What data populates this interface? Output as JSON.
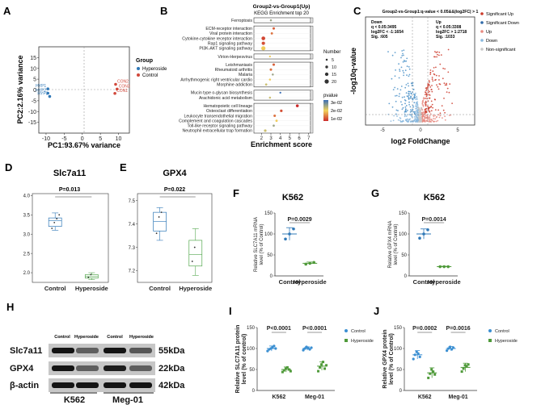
{
  "panels": {
    "A": {
      "letter": "A"
    },
    "B": {
      "letter": "B"
    },
    "C": {
      "letter": "C"
    },
    "D": {
      "letter": "D"
    },
    "E": {
      "letter": "E"
    },
    "F": {
      "letter": "F"
    },
    "G": {
      "letter": "G"
    },
    "H": {
      "letter": "H"
    },
    "I": {
      "letter": "I"
    },
    "J": {
      "letter": "J"
    }
  },
  "colors": {
    "control": "#2f78b7",
    "hyperoside": "#d1483b",
    "F_control": "#2f78b7",
    "F_hyperoside": "#4f9a3a",
    "I_control": "#3b8fd2",
    "I_hyperoside": "#4f9a3a",
    "D_hyper": "#55a84f",
    "volcano_up": "#cc3a2a",
    "volcano_down": "#4a90c8",
    "volcano_ns": "#c8c8c8"
  },
  "chart_data": [
    {
      "id": "A",
      "type": "scatter",
      "title": "",
      "xlabel": "PC1:93.67% variance",
      "ylabel": "PC2:2.16% variance",
      "xlim": [
        -12,
        13
      ],
      "ylim": [
        -20,
        20
      ],
      "xticks": [
        "-10",
        "-5",
        "0",
        "5",
        "10"
      ],
      "yticks": [
        "-15",
        "-10",
        "-5",
        "0",
        "5",
        "10",
        "15"
      ],
      "legend_title": "Group",
      "legend": [
        "Hyperoside",
        "Control"
      ],
      "series": [
        {
          "name": "Hyperoside",
          "points": [
            [
              -9.5,
              0.5,
              "HYP1"
            ],
            [
              -9.5,
              -1.5,
              "HYP2"
            ],
            [
              -9.0,
              -3.0,
              "HYP3"
            ]
          ]
        },
        {
          "name": "Control",
          "points": [
            [
              9.2,
              2.6,
              "CON2"
            ],
            [
              9.6,
              0.4,
              "CON3"
            ],
            [
              9.0,
              -1.6,
              "CON1"
            ]
          ]
        }
      ]
    },
    {
      "id": "B",
      "type": "scatter",
      "title_line1": "Group2-vs-Group1(Up)",
      "title_line2": "KEGG Enrichment top 20",
      "xlabel": "Enrichment score",
      "xlim": [
        1.2,
        7.2
      ],
      "xticks": [
        "2",
        "3",
        "4",
        "5",
        "6",
        "7"
      ],
      "size_legend_title": "Number",
      "size_legend": [
        "5",
        "10",
        "15",
        "20"
      ],
      "color_legend_title": "pvalue",
      "color_legend": [
        "3e-02",
        "2e-02",
        "1e-02"
      ],
      "terms": [
        {
          "name": "Ferroptosis",
          "score": 3.0,
          "number": 5,
          "pvalue": 0.03,
          "group": "a"
        },
        {
          "name": "ECM-receptor interaction",
          "score": 3.3,
          "number": 8,
          "pvalue": 0.008,
          "group": "b"
        },
        {
          "name": "Viral protein interaction",
          "score": 3.1,
          "number": 7,
          "pvalue": 0.01,
          "group": "b"
        },
        {
          "name": "Cytokine-cytokine receptor interaction",
          "score": 2.2,
          "number": 17,
          "pvalue": 0.005,
          "group": "b"
        },
        {
          "name": "Rap1 signaling pathway",
          "score": 2.2,
          "number": 14,
          "pvalue": 0.006,
          "group": "b"
        },
        {
          "name": "PI3K-AKT signaling pathway",
          "score": 2.2,
          "number": 20,
          "pvalue": 0.02,
          "group": "b"
        },
        {
          "name": "Virion-Herpesvirus",
          "score": 2.9,
          "number": 4,
          "pvalue": 0.02,
          "group": "c"
        },
        {
          "name": "Leishmaniasis",
          "score": 3.3,
          "number": 8,
          "pvalue": 0.008,
          "group": "d"
        },
        {
          "name": "Rheumatoid arthritis",
          "score": 3.0,
          "number": 8,
          "pvalue": 0.01,
          "group": "d"
        },
        {
          "name": "Malaria",
          "score": 3.2,
          "number": 5,
          "pvalue": 0.03,
          "group": "d"
        },
        {
          "name": "Arrhythmogenic right ventricular cardio",
          "score": 2.9,
          "number": 5,
          "pvalue": 0.02,
          "group": "d"
        },
        {
          "name": "Morphine addiction",
          "score": 2.5,
          "number": 6,
          "pvalue": 0.025,
          "group": "d"
        },
        {
          "name": "Mucin type o-glycan biosynthesis",
          "score": 4.0,
          "number": 4,
          "pvalue": 0.04,
          "group": "e"
        },
        {
          "name": "Arachidonic acid metabolism",
          "score": 2.9,
          "number": 5,
          "pvalue": 0.025,
          "group": "e"
        },
        {
          "name": "Hematopoietic cell lineage",
          "score": 5.8,
          "number": 11,
          "pvalue": 0.002,
          "group": "f"
        },
        {
          "name": "Osteoclast differentiation",
          "score": 4.1,
          "number": 9,
          "pvalue": 0.006,
          "group": "f"
        },
        {
          "name": "Leukocyte transendothelial migration",
          "score": 3.4,
          "number": 8,
          "pvalue": 0.01,
          "group": "f"
        },
        {
          "name": "Complement and coagulation cascades",
          "score": 3.6,
          "number": 7,
          "pvalue": 0.02,
          "group": "f"
        },
        {
          "name": "Toll-like receptor signaling pathway",
          "score": 3.3,
          "number": 6,
          "pvalue": 0.03,
          "group": "f"
        },
        {
          "name": "Neutrophil extracellular trap formation",
          "score": 2.4,
          "number": 9,
          "pvalue": 0.025,
          "group": "f"
        }
      ]
    },
    {
      "id": "C",
      "type": "scatter",
      "title": "Group2-vs-Group1:q-value < 0.05&&|log2FC| > 1",
      "xlabel": "log2 FoldChange",
      "ylabel": "-log10q-value",
      "xticks": [
        "-5",
        "0",
        "5"
      ],
      "down_text": [
        "Down",
        "q < 0.05:3495",
        "log2FC < -1:1654",
        "Sig. :605"
      ],
      "up_text": [
        "Up",
        "q < 0.05:3308",
        "log2FC > 1:2718",
        "Sig. :1033"
      ],
      "legend": [
        "Significant Up",
        "Significant Down",
        "Up",
        "Down",
        "Non-significant"
      ]
    },
    {
      "id": "D",
      "type": "box",
      "title": "Slc7a11",
      "pvalue": "P=0.013",
      "categories": [
        "Control",
        "Hyperoside"
      ],
      "ylim": [
        1.75,
        4.05
      ],
      "yticks": [
        "2.0",
        "2.5",
        "3.0",
        "3.5",
        "4.0"
      ],
      "boxes": [
        {
          "name": "Control",
          "min": 3.1,
          "q1": 3.2,
          "median": 3.35,
          "q3": 3.42,
          "max": 3.55,
          "points": [
            3.15,
            3.3,
            3.4,
            3.5
          ]
        },
        {
          "name": "Hyperoside",
          "min": 1.82,
          "q1": 1.86,
          "median": 1.9,
          "q3": 1.95,
          "max": 2.0,
          "points": [
            1.88,
            1.95
          ]
        }
      ]
    },
    {
      "id": "E",
      "type": "box",
      "title": "GPX4",
      "pvalue": "P=0.022",
      "categories": [
        "Control",
        "Hyperoside"
      ],
      "ylim": [
        7.15,
        7.53
      ],
      "yticks": [
        "7.2",
        "7.3",
        "7.4",
        "7.5"
      ],
      "boxes": [
        {
          "name": "Control",
          "min": 7.33,
          "q1": 7.37,
          "median": 7.41,
          "q3": 7.45,
          "max": 7.47,
          "points": [
            7.36,
            7.43,
            7.45
          ]
        },
        {
          "name": "Hyperoside",
          "min": 7.18,
          "q1": 7.22,
          "median": 7.27,
          "q3": 7.33,
          "max": 7.38,
          "points": [
            7.24,
            7.3
          ]
        }
      ]
    },
    {
      "id": "F",
      "type": "bar",
      "title": "K562",
      "pvalue": "P=0.0029",
      "ylabel": "Relative SLC7A11 mRNA level (% of Control)",
      "categories": [
        "Control",
        "Hyperoside"
      ],
      "ylim": [
        0,
        150
      ],
      "yticks": [
        "0",
        "50",
        "100",
        "150"
      ],
      "values": [
        100,
        30
      ],
      "errors": [
        15,
        3
      ],
      "points": [
        [
          88,
          100,
          112
        ],
        [
          28,
          30,
          32
        ]
      ]
    },
    {
      "id": "G",
      "type": "bar",
      "title": "K562",
      "pvalue": "P=0.0014",
      "ylabel": "Relative GPX4 mRNA level (% of Control)",
      "categories": [
        "Control",
        "Hyperoside"
      ],
      "ylim": [
        0,
        150
      ],
      "yticks": [
        "0",
        "50",
        "100",
        "150"
      ],
      "values": [
        100,
        22
      ],
      "errors": [
        12,
        1
      ],
      "points": [
        [
          90,
          100,
          110
        ],
        [
          22,
          22,
          22
        ]
      ]
    },
    {
      "id": "I",
      "type": "bar",
      "ylabel": "Relative SLC7A11 protein level (% of control)",
      "categories": [
        "K562",
        "Meg-01"
      ],
      "legend": [
        "Control",
        "Hyperoside"
      ],
      "ylim": [
        0,
        150
      ],
      "yticks": [
        "0",
        "50",
        "100",
        "150"
      ],
      "pvalues": [
        "P<0.0001",
        "P<0.0001"
      ],
      "series": [
        {
          "name": "Control",
          "values": [
            100,
            100
          ],
          "errors": [
            6,
            4
          ],
          "points": [
            [
              94,
              98,
              100,
              103,
              106,
              100
            ],
            [
              96,
              100,
              104,
              101,
              98,
              102
            ]
          ]
        },
        {
          "name": "Hyperoside",
          "values": [
            50,
            58
          ],
          "errors": [
            6,
            10
          ],
          "points": [
            [
              44,
              48,
              52,
              55,
              50,
              46
            ],
            [
              46,
              55,
              62,
              68,
              52,
              60
            ]
          ]
        }
      ]
    },
    {
      "id": "J",
      "type": "bar",
      "ylabel": "Relative GPX4 protein level (% of Control)",
      "categories": [
        "K562",
        "Meg-01"
      ],
      "legend": [
        "Control",
        "Hyperoside"
      ],
      "ylim": [
        0,
        150
      ],
      "yticks": [
        "0",
        "50",
        "100",
        "150"
      ],
      "pvalues": [
        "P=0.0002",
        "P=0.0016"
      ],
      "series": [
        {
          "name": "Control",
          "values": [
            85,
            100
          ],
          "errors": [
            10,
            5
          ],
          "points": [
            [
              75,
              85,
              92,
              88,
              80
            ],
            [
              95,
              100,
              104,
              98,
              102
            ]
          ]
        },
        {
          "name": "Hyperoside",
          "values": [
            42,
            55
          ],
          "errors": [
            12,
            10
          ],
          "points": [
            [
              30,
              40,
              50,
              45,
              38
            ],
            [
              45,
              52,
              60,
              58,
              62
            ]
          ]
        }
      ]
    }
  ],
  "blot": {
    "column_labels": [
      "Control",
      "Hyperoside",
      "Control",
      "Hyperoside"
    ],
    "rows": [
      "Slc7a11",
      "GPX4",
      "β-actin"
    ],
    "kda": [
      "55kDa",
      "22kDa",
      "42kDa"
    ],
    "cell_lines": [
      "K562",
      "Meg-01"
    ],
    "intensities": [
      [
        0.95,
        0.55,
        0.95,
        0.6
      ],
      [
        0.95,
        0.55,
        0.9,
        0.55
      ],
      [
        0.95,
        0.95,
        0.95,
        0.95
      ]
    ]
  }
}
